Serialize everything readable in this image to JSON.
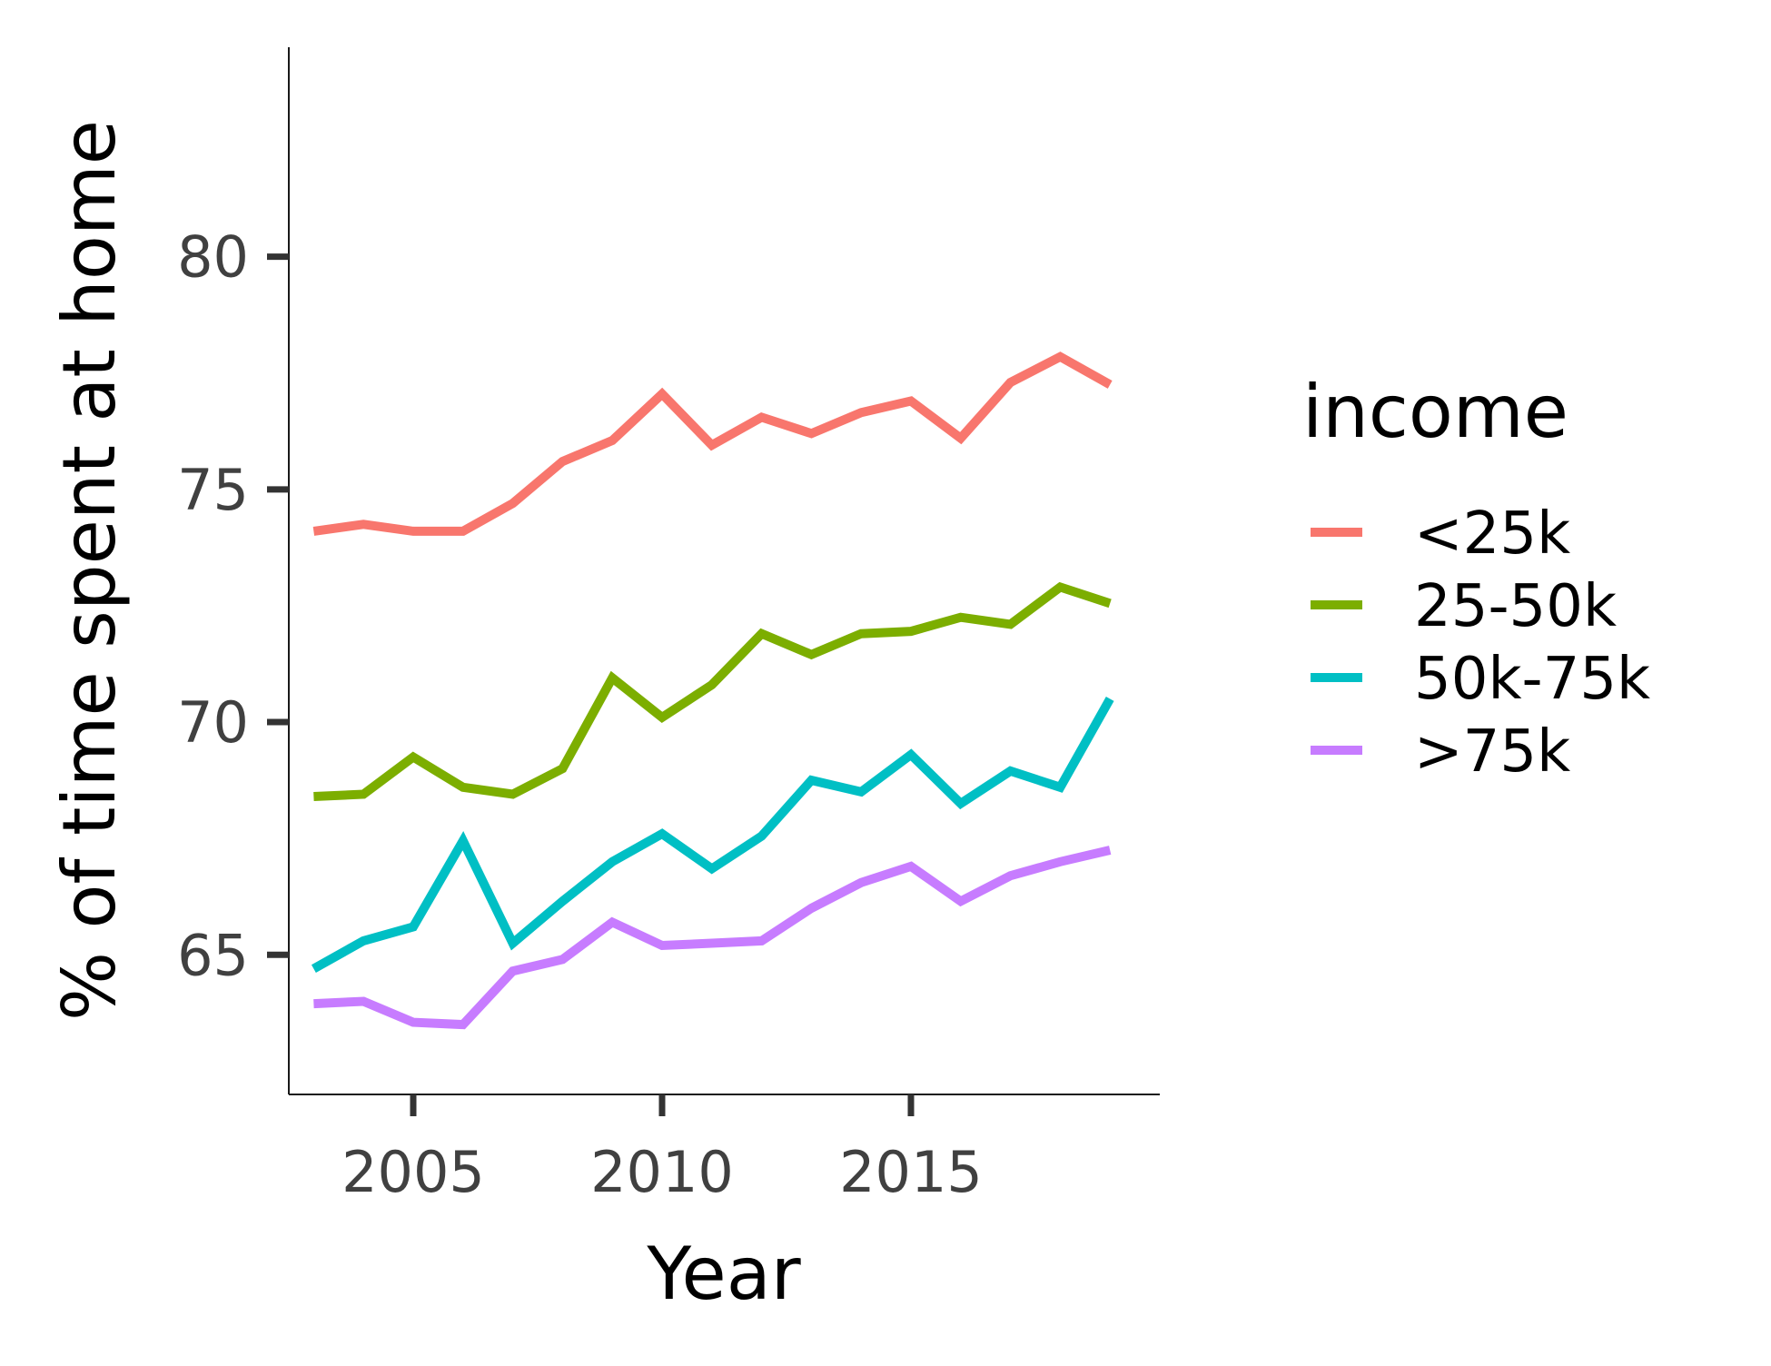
{
  "chart_data": {
    "type": "line",
    "title": "",
    "xlabel": "Year",
    "ylabel": "% of time spent at home",
    "xlim": [
      2002.5,
      2020.0
    ],
    "ylim": [
      62.0,
      84.5
    ],
    "x_ticks": [
      2005,
      2010,
      2015
    ],
    "y_ticks": [
      65,
      70,
      75,
      80
    ],
    "grid": false,
    "legend": {
      "title": "income",
      "position": "right"
    },
    "x": [
      2003,
      2004,
      2005,
      2006,
      2007,
      2008,
      2009,
      2010,
      2011,
      2012,
      2013,
      2014,
      2015,
      2016,
      2017,
      2018,
      2019
    ],
    "series": [
      {
        "name": "<25k",
        "color": "#F8766D",
        "values": [
          74.1,
          74.25,
          74.1,
          74.1,
          74.7,
          75.6,
          76.05,
          77.05,
          75.95,
          76.55,
          76.2,
          76.65,
          76.9,
          76.1,
          77.3,
          77.85,
          77.25
        ]
      },
      {
        "name": "25-50k",
        "color": "#7CAE00",
        "values": [
          68.4,
          68.45,
          69.25,
          68.6,
          68.45,
          69.0,
          70.95,
          70.1,
          70.8,
          71.9,
          71.45,
          71.9,
          71.95,
          72.25,
          72.1,
          72.9,
          72.55
        ]
      },
      {
        "name": "50k-75k",
        "color": "#00BFC4",
        "values": [
          64.7,
          65.3,
          65.6,
          67.45,
          65.25,
          66.15,
          67.0,
          67.6,
          66.85,
          67.55,
          68.75,
          68.5,
          69.3,
          68.25,
          68.95,
          68.6,
          70.5
        ]
      },
      {
        "name": ">75k",
        "color": "#C77CFF",
        "values": [
          63.95,
          64.0,
          63.55,
          63.5,
          64.65,
          64.9,
          65.7,
          65.2,
          65.25,
          65.3,
          66.0,
          66.55,
          66.9,
          66.15,
          66.7,
          67.0,
          67.25
        ]
      }
    ]
  }
}
